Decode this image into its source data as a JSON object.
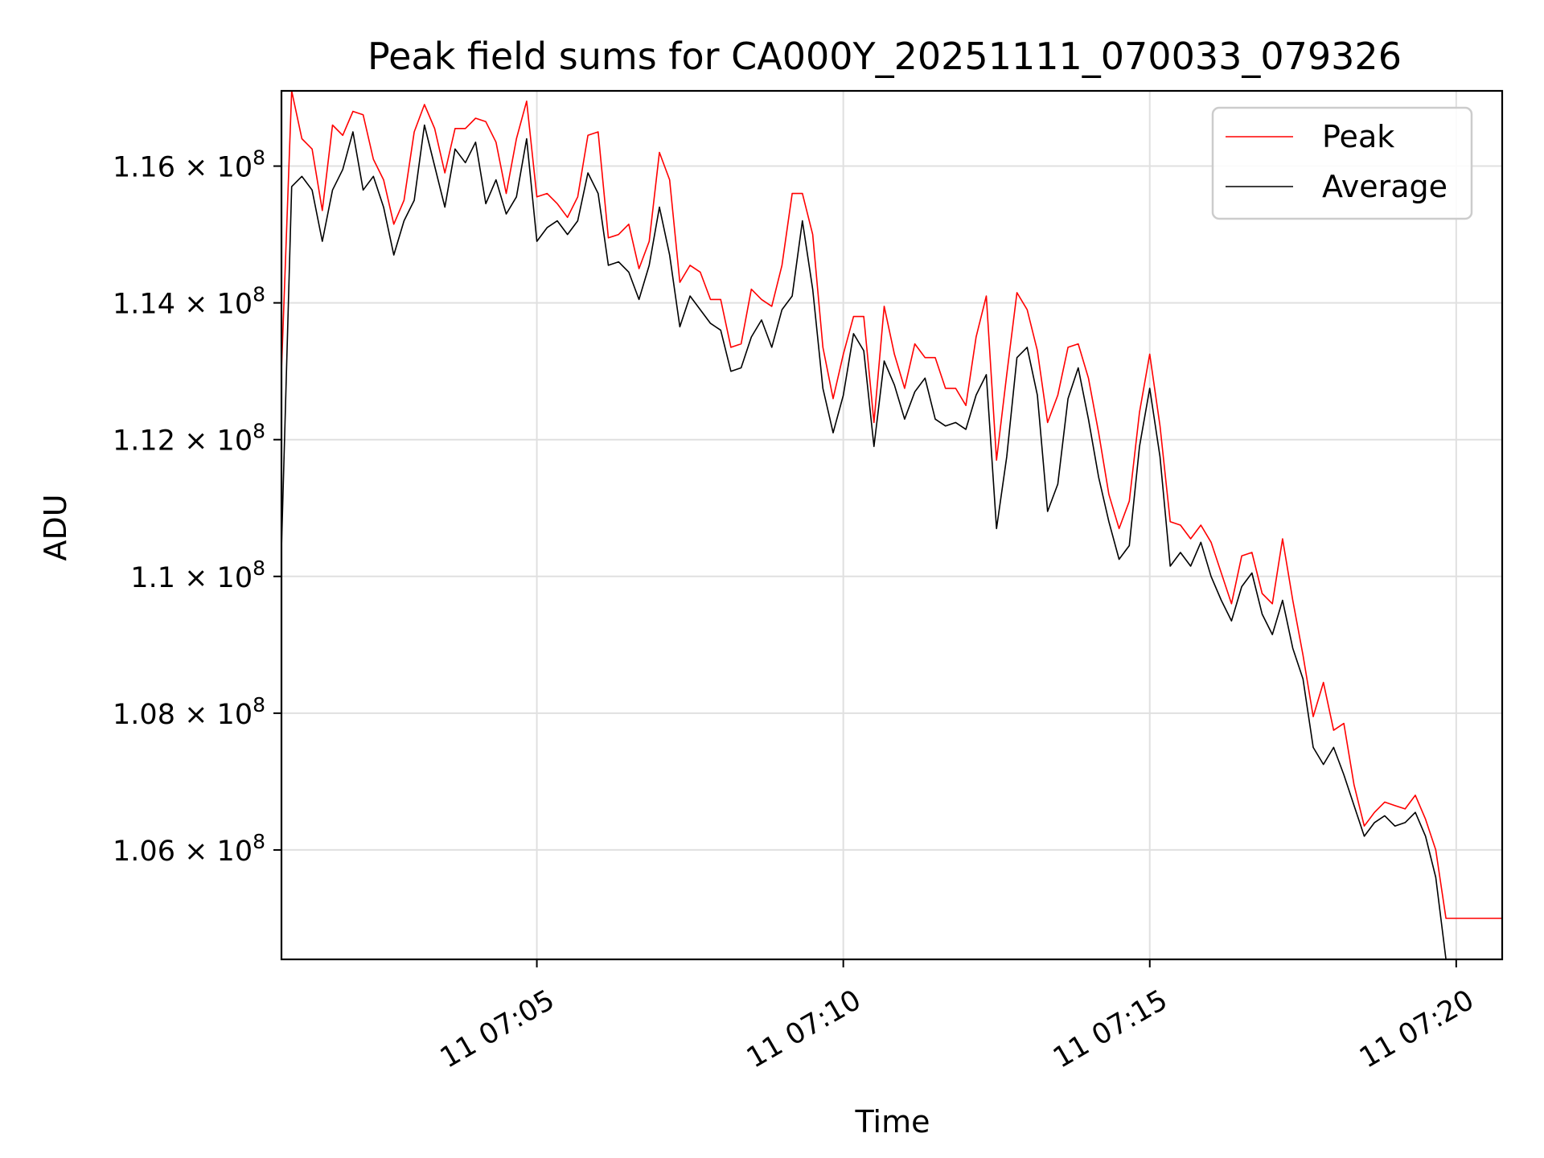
{
  "chart_data": {
    "type": "line",
    "title": "Peak field sums for CA000Y_20251111_070033_079326",
    "xlabel": "Time",
    "ylabel": "ADU",
    "xlim": [
      "07:00:50",
      "07:20:45"
    ],
    "ylim": [
      104400000,
      117100000
    ],
    "x_ticks": [
      {
        "label": "11 07:05",
        "time": "07:05:00"
      },
      {
        "label": "11 07:10",
        "time": "07:10:00"
      },
      {
        "label": "11 07:15",
        "time": "07:15:00"
      },
      {
        "label": "11 07:20",
        "time": "07:20:00"
      }
    ],
    "y_ticks": [
      {
        "value": 106000000,
        "mantissa": "1.06",
        "exponent": "8"
      },
      {
        "value": 108000000,
        "mantissa": "1.08",
        "exponent": "8"
      },
      {
        "value": 110000000,
        "mantissa": "1.1",
        "exponent": "8"
      },
      {
        "value": 112000000,
        "mantissa": "1.12",
        "exponent": "8"
      },
      {
        "value": 114000000,
        "mantissa": "1.14",
        "exponent": "8"
      },
      {
        "value": 116000000,
        "mantissa": "1.16",
        "exponent": "8"
      }
    ],
    "times_sec_range": [
      "07:00:50",
      "07:20:45"
    ],
    "grid": true,
    "legend": "top-right",
    "series": [
      {
        "name": "Peak",
        "color": "#ff0000",
        "points": [
          [
            "07:00:50",
            113000000
          ],
          [
            "07:01:00",
            117100000
          ],
          [
            "07:01:10",
            116400000
          ],
          [
            "07:01:20",
            116250000
          ],
          [
            "07:01:30",
            115350000
          ],
          [
            "07:01:40",
            116600000
          ],
          [
            "07:01:50",
            116450000
          ],
          [
            "07:02:00",
            116800000
          ],
          [
            "07:02:10",
            116750000
          ],
          [
            "07:02:20",
            116100000
          ],
          [
            "07:02:30",
            115800000
          ],
          [
            "07:02:40",
            115150000
          ],
          [
            "07:02:50",
            115500000
          ],
          [
            "07:03:00",
            116500000
          ],
          [
            "07:03:10",
            116900000
          ],
          [
            "07:03:20",
            116550000
          ],
          [
            "07:03:30",
            115900000
          ],
          [
            "07:03:40",
            116550000
          ],
          [
            "07:03:50",
            116550000
          ],
          [
            "07:04:00",
            116700000
          ],
          [
            "07:04:10",
            116650000
          ],
          [
            "07:04:20",
            116350000
          ],
          [
            "07:04:30",
            115600000
          ],
          [
            "07:04:40",
            116400000
          ],
          [
            "07:04:50",
            116950000
          ],
          [
            "07:05:00",
            115550000
          ],
          [
            "07:05:10",
            115600000
          ],
          [
            "07:05:20",
            115450000
          ],
          [
            "07:05:30",
            115250000
          ],
          [
            "07:05:40",
            115550000
          ],
          [
            "07:05:50",
            116450000
          ],
          [
            "07:06:00",
            116500000
          ],
          [
            "07:06:10",
            114950000
          ],
          [
            "07:06:20",
            115000000
          ],
          [
            "07:06:30",
            115150000
          ],
          [
            "07:06:40",
            114500000
          ],
          [
            "07:06:50",
            114900000
          ],
          [
            "07:07:00",
            116200000
          ],
          [
            "07:07:10",
            115800000
          ],
          [
            "07:07:20",
            114300000
          ],
          [
            "07:07:30",
            114550000
          ],
          [
            "07:07:40",
            114450000
          ],
          [
            "07:07:50",
            114050000
          ],
          [
            "07:08:00",
            114050000
          ],
          [
            "07:08:10",
            113350000
          ],
          [
            "07:08:20",
            113400000
          ],
          [
            "07:08:30",
            114200000
          ],
          [
            "07:08:40",
            114050000
          ],
          [
            "07:08:50",
            113950000
          ],
          [
            "07:09:00",
            114550000
          ],
          [
            "07:09:10",
            115600000
          ],
          [
            "07:09:20",
            115600000
          ],
          [
            "07:09:30",
            115000000
          ],
          [
            "07:09:40",
            113350000
          ],
          [
            "07:09:50",
            112600000
          ],
          [
            "07:10:00",
            113250000
          ],
          [
            "07:10:10",
            113800000
          ],
          [
            "07:10:20",
            113800000
          ],
          [
            "07:10:30",
            112250000
          ],
          [
            "07:10:40",
            113950000
          ],
          [
            "07:10:50",
            113250000
          ],
          [
            "07:11:00",
            112750000
          ],
          [
            "07:11:10",
            113400000
          ],
          [
            "07:11:20",
            113200000
          ],
          [
            "07:11:30",
            113200000
          ],
          [
            "07:11:40",
            112750000
          ],
          [
            "07:11:50",
            112750000
          ],
          [
            "07:12:00",
            112500000
          ],
          [
            "07:12:10",
            113500000
          ],
          [
            "07:12:20",
            114100000
          ],
          [
            "07:12:30",
            111700000
          ],
          [
            "07:12:40",
            112950000
          ],
          [
            "07:12:50",
            114150000
          ],
          [
            "07:13:00",
            113900000
          ],
          [
            "07:13:10",
            113300000
          ],
          [
            "07:13:20",
            112250000
          ],
          [
            "07:13:30",
            112650000
          ],
          [
            "07:13:40",
            113350000
          ],
          [
            "07:13:50",
            113400000
          ],
          [
            "07:14:00",
            112900000
          ],
          [
            "07:14:10",
            112100000
          ],
          [
            "07:14:20",
            111200000
          ],
          [
            "07:14:30",
            110700000
          ],
          [
            "07:14:40",
            111100000
          ],
          [
            "07:14:50",
            112400000
          ],
          [
            "07:15:00",
            113250000
          ],
          [
            "07:15:10",
            112200000
          ],
          [
            "07:15:20",
            110800000
          ],
          [
            "07:15:30",
            110750000
          ],
          [
            "07:15:40",
            110550000
          ],
          [
            "07:15:50",
            110750000
          ],
          [
            "07:16:00",
            110500000
          ],
          [
            "07:16:10",
            110050000
          ],
          [
            "07:16:20",
            109600000
          ],
          [
            "07:16:30",
            110300000
          ],
          [
            "07:16:40",
            110350000
          ],
          [
            "07:16:50",
            109750000
          ],
          [
            "07:17:00",
            109600000
          ],
          [
            "07:17:10",
            110550000
          ],
          [
            "07:17:20",
            109650000
          ],
          [
            "07:17:30",
            108850000
          ],
          [
            "07:17:40",
            107950000
          ],
          [
            "07:17:50",
            108450000
          ],
          [
            "07:18:00",
            107750000
          ],
          [
            "07:18:10",
            107850000
          ],
          [
            "07:18:20",
            106950000
          ],
          [
            "07:18:30",
            106350000
          ],
          [
            "07:18:40",
            106550000
          ],
          [
            "07:18:50",
            106700000
          ],
          [
            "07:19:00",
            106650000
          ],
          [
            "07:19:10",
            106600000
          ],
          [
            "07:19:20",
            106800000
          ],
          [
            "07:19:30",
            106450000
          ],
          [
            "07:19:40",
            106000000
          ],
          [
            "07:19:50",
            105000000
          ],
          [
            "07:20:00",
            105000000
          ],
          [
            "07:20:10",
            105000000
          ],
          [
            "07:20:20",
            105000000
          ],
          [
            "07:20:30",
            105000000
          ],
          [
            "07:20:45",
            105000000
          ]
        ]
      },
      {
        "name": "Average",
        "color": "#000000",
        "points": [
          [
            "07:00:50",
            110400000
          ],
          [
            "07:01:00",
            115700000
          ],
          [
            "07:01:10",
            115850000
          ],
          [
            "07:01:20",
            115650000
          ],
          [
            "07:01:30",
            114900000
          ],
          [
            "07:01:40",
            115650000
          ],
          [
            "07:01:50",
            115950000
          ],
          [
            "07:02:00",
            116500000
          ],
          [
            "07:02:10",
            115650000
          ],
          [
            "07:02:20",
            115850000
          ],
          [
            "07:02:30",
            115400000
          ],
          [
            "07:02:40",
            114700000
          ],
          [
            "07:02:50",
            115200000
          ],
          [
            "07:03:00",
            115500000
          ],
          [
            "07:03:10",
            116600000
          ],
          [
            "07:03:20",
            116000000
          ],
          [
            "07:03:30",
            115400000
          ],
          [
            "07:03:40",
            116250000
          ],
          [
            "07:03:50",
            116050000
          ],
          [
            "07:04:00",
            116350000
          ],
          [
            "07:04:10",
            115450000
          ],
          [
            "07:04:20",
            115800000
          ],
          [
            "07:04:30",
            115300000
          ],
          [
            "07:04:40",
            115550000
          ],
          [
            "07:04:50",
            116400000
          ],
          [
            "07:05:00",
            114900000
          ],
          [
            "07:05:10",
            115100000
          ],
          [
            "07:05:20",
            115200000
          ],
          [
            "07:05:30",
            115000000
          ],
          [
            "07:05:40",
            115200000
          ],
          [
            "07:05:50",
            115900000
          ],
          [
            "07:06:00",
            115600000
          ],
          [
            "07:06:10",
            114550000
          ],
          [
            "07:06:20",
            114600000
          ],
          [
            "07:06:30",
            114450000
          ],
          [
            "07:06:40",
            114050000
          ],
          [
            "07:06:50",
            114550000
          ],
          [
            "07:07:00",
            115400000
          ],
          [
            "07:07:10",
            114700000
          ],
          [
            "07:07:20",
            113650000
          ],
          [
            "07:07:30",
            114100000
          ],
          [
            "07:07:40",
            113900000
          ],
          [
            "07:07:50",
            113700000
          ],
          [
            "07:08:00",
            113600000
          ],
          [
            "07:08:10",
            113000000
          ],
          [
            "07:08:20",
            113050000
          ],
          [
            "07:08:30",
            113500000
          ],
          [
            "07:08:40",
            113750000
          ],
          [
            "07:08:50",
            113350000
          ],
          [
            "07:09:00",
            113900000
          ],
          [
            "07:09:10",
            114100000
          ],
          [
            "07:09:20",
            115200000
          ],
          [
            "07:09:30",
            114200000
          ],
          [
            "07:09:40",
            112750000
          ],
          [
            "07:09:50",
            112100000
          ],
          [
            "07:10:00",
            112650000
          ],
          [
            "07:10:10",
            113550000
          ],
          [
            "07:10:20",
            113300000
          ],
          [
            "07:10:30",
            111900000
          ],
          [
            "07:10:40",
            113150000
          ],
          [
            "07:10:50",
            112800000
          ],
          [
            "07:11:00",
            112300000
          ],
          [
            "07:11:10",
            112700000
          ],
          [
            "07:11:20",
            112900000
          ],
          [
            "07:11:30",
            112300000
          ],
          [
            "07:11:40",
            112200000
          ],
          [
            "07:11:50",
            112250000
          ],
          [
            "07:12:00",
            112150000
          ],
          [
            "07:12:10",
            112650000
          ],
          [
            "07:12:20",
            112950000
          ],
          [
            "07:12:30",
            110700000
          ],
          [
            "07:12:40",
            111750000
          ],
          [
            "07:12:50",
            113200000
          ],
          [
            "07:13:00",
            113350000
          ],
          [
            "07:13:10",
            112650000
          ],
          [
            "07:13:20",
            110950000
          ],
          [
            "07:13:30",
            111350000
          ],
          [
            "07:13:40",
            112600000
          ],
          [
            "07:13:50",
            113050000
          ],
          [
            "07:14:00",
            112300000
          ],
          [
            "07:14:10",
            111450000
          ],
          [
            "07:14:20",
            110800000
          ],
          [
            "07:14:30",
            110250000
          ],
          [
            "07:14:40",
            110450000
          ],
          [
            "07:14:50",
            111900000
          ],
          [
            "07:15:00",
            112750000
          ],
          [
            "07:15:10",
            111750000
          ],
          [
            "07:15:20",
            110150000
          ],
          [
            "07:15:30",
            110350000
          ],
          [
            "07:15:40",
            110150000
          ],
          [
            "07:15:50",
            110500000
          ],
          [
            "07:16:00",
            110000000
          ],
          [
            "07:16:10",
            109650000
          ],
          [
            "07:16:20",
            109350000
          ],
          [
            "07:16:30",
            109850000
          ],
          [
            "07:16:40",
            110050000
          ],
          [
            "07:16:50",
            109450000
          ],
          [
            "07:17:00",
            109150000
          ],
          [
            "07:17:10",
            109650000
          ],
          [
            "07:17:20",
            108950000
          ],
          [
            "07:17:30",
            108500000
          ],
          [
            "07:17:40",
            107500000
          ],
          [
            "07:17:50",
            107250000
          ],
          [
            "07:18:00",
            107500000
          ],
          [
            "07:18:10",
            107100000
          ],
          [
            "07:18:20",
            106650000
          ],
          [
            "07:18:30",
            106200000
          ],
          [
            "07:18:40",
            106400000
          ],
          [
            "07:18:50",
            106500000
          ],
          [
            "07:19:00",
            106350000
          ],
          [
            "07:19:10",
            106400000
          ],
          [
            "07:19:20",
            106550000
          ],
          [
            "07:19:30",
            106200000
          ],
          [
            "07:19:40",
            105600000
          ],
          [
            "07:19:50",
            104400000
          ]
        ]
      }
    ]
  }
}
